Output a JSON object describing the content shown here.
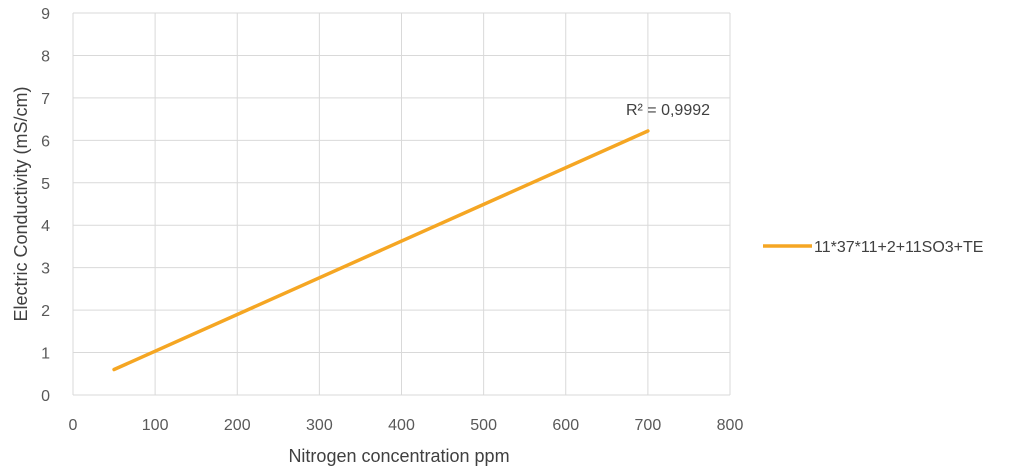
{
  "chart_data": {
    "type": "line",
    "xlabel": "Nitrogen concentration ppm",
    "ylabel": "Electric Conductivity (mS/cm)",
    "xlim": [
      0,
      800
    ],
    "ylim": [
      0,
      9
    ],
    "x_ticks": [
      "0",
      "100",
      "200",
      "300",
      "400",
      "500",
      "600",
      "700",
      "800"
    ],
    "y_ticks": [
      "0",
      "1",
      "2",
      "3",
      "4",
      "5",
      "6",
      "7",
      "8",
      "9"
    ],
    "grid": true,
    "legend_position": "right",
    "series": [
      {
        "name": "11*37*11+2+11SO3+TE",
        "color": "#F5A623",
        "x": [
          50,
          700
        ],
        "y": [
          0.6,
          6.22
        ]
      }
    ],
    "annotations": [
      {
        "text": "R² = 0,9992",
        "x": 700,
        "y": 6.22
      }
    ]
  }
}
